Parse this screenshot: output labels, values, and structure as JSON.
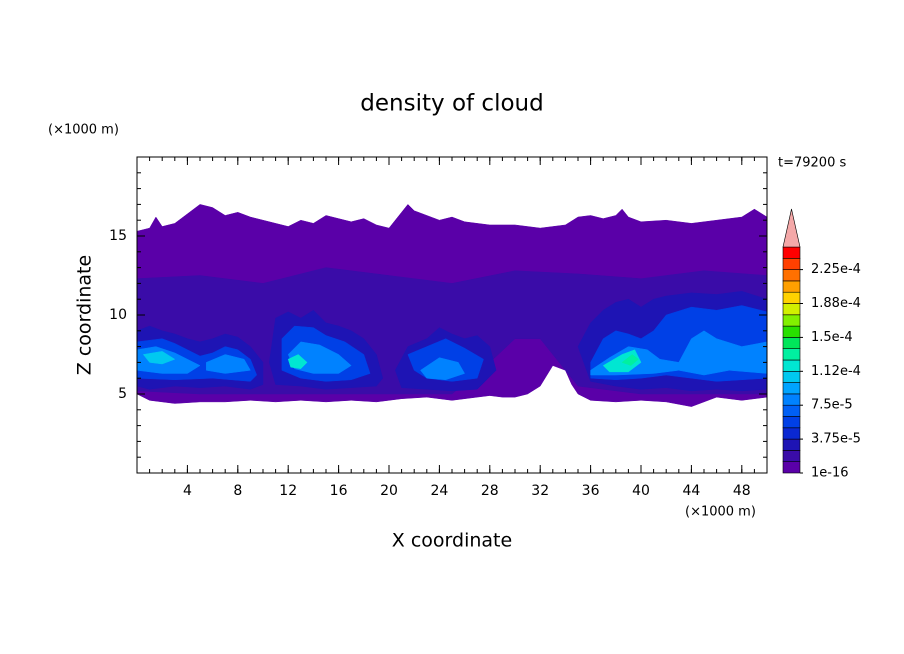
{
  "chart_data": {
    "type": "contour",
    "title": "density of cloud",
    "time_label": "t=79200 s",
    "x_label": "X coordinate",
    "y_label": "Z coordinate",
    "x_unit": "(×1000 m)",
    "y_unit": "(×1000 m)",
    "xlim": [
      0,
      50
    ],
    "ylim": [
      0,
      20
    ],
    "xticks": [
      4,
      8,
      12,
      16,
      20,
      24,
      28,
      32,
      36,
      40,
      44,
      48
    ],
    "yticks": [
      5,
      10,
      15
    ],
    "minor_step": 1,
    "levels": [
      1e-16,
      1.25e-05,
      2.5e-05,
      3.75e-05,
      5e-05,
      6.25e-05,
      7.5e-05,
      8.75e-05,
      0.0001,
      0.0001125,
      0.000125,
      0.0001375,
      0.00015,
      0.0001625,
      0.000175,
      0.0001875,
      0.0002,
      0.0002125,
      0.000225,
      0.0002375,
      0.00025
    ],
    "colors": [
      "#5a00a8",
      "#3a0ca8",
      "#1e14b4",
      "#0a28d2",
      "#0040e6",
      "#0060f5",
      "#0082ff",
      "#00a4ff",
      "#00c8f0",
      "#00e6d2",
      "#00f0a0",
      "#00e65a",
      "#28e000",
      "#82f000",
      "#d2f000",
      "#ffd200",
      "#ffa000",
      "#ff7000",
      "#ff4000",
      "#ff0000"
    ],
    "extend_color": "#f4a8a8",
    "colorbar_ticks": [
      1e-16,
      {
        "value": 3.75e-05,
        "label": "3.75e-5"
      },
      {
        "value": 7.5e-05,
        "label": "7.5e-5"
      },
      {
        "value": 0.0001125,
        "label": "1.12e-4"
      },
      {
        "value": 0.00015,
        "label": "1.5e-4"
      },
      {
        "value": 0.0001875,
        "label": "1.88e-4"
      },
      {
        "value": 0.000225,
        "label": "2.25e-4"
      }
    ],
    "regions": [
      {
        "level": 1e-16,
        "x": [
          0,
          1,
          1.5,
          2,
          3,
          4,
          5,
          6,
          7,
          8,
          9,
          10,
          11,
          12,
          13,
          14,
          15,
          16,
          17,
          18,
          19,
          20,
          21,
          21.5,
          22,
          23,
          24,
          25,
          26,
          28,
          30,
          31,
          32,
          33,
          34,
          35,
          36,
          37,
          38,
          38.5,
          39,
          40,
          42,
          44,
          46,
          48,
          49,
          50,
          50,
          48,
          46,
          44,
          42,
          40,
          38,
          36,
          35,
          34.5,
          34,
          33,
          32,
          31,
          30,
          29,
          28,
          27,
          25,
          23,
          21,
          19,
          17,
          15,
          13,
          11,
          9,
          7,
          5,
          3,
          1,
          0
        ],
        "z": [
          15.3,
          15.5,
          16.2,
          15.6,
          15.8,
          16.4,
          17,
          16.8,
          16.3,
          16.5,
          16.2,
          16,
          15.8,
          15.6,
          16,
          15.8,
          16.3,
          16.1,
          15.9,
          16.1,
          15.7,
          15.5,
          16.5,
          17,
          16.6,
          16.3,
          16,
          16.2,
          15.9,
          15.7,
          15.7,
          15.6,
          15.5,
          15.6,
          15.7,
          16.2,
          16.3,
          16.1,
          16.3,
          16.7,
          16.2,
          15.9,
          16,
          15.8,
          16,
          16.2,
          16.7,
          16.2,
          4.8,
          4.6,
          4.8,
          4.2,
          4.5,
          4.6,
          4.5,
          4.6,
          5,
          5.6,
          6.5,
          6.8,
          5.5,
          5,
          4.8,
          4.8,
          4.9,
          4.8,
          4.6,
          4.8,
          4.7,
          4.5,
          4.6,
          4.5,
          4.6,
          4.5,
          4.6,
          4.5,
          4.5,
          4.4,
          4.6,
          5
        ]
      },
      {
        "level": 1.25e-05,
        "x": [
          0,
          5,
          10,
          15,
          20,
          25,
          30,
          35,
          40,
          45,
          50,
          50,
          45,
          40,
          35,
          32,
          30,
          28,
          25,
          20,
          15,
          10,
          5,
          0
        ],
        "z": [
          12.3,
          12.5,
          12,
          13,
          12.5,
          12,
          12.8,
          12.6,
          12.3,
          12.8,
          12.5,
          5,
          5,
          5,
          5.5,
          8.5,
          8.5,
          7,
          5,
          5,
          5,
          5,
          5,
          5.2
        ]
      },
      {
        "level": 2.5e-05,
        "x": [
          0,
          1,
          2,
          3,
          4,
          5,
          6,
          7,
          8,
          9,
          10,
          10,
          9,
          7,
          5,
          3,
          1,
          0
        ],
        "z": [
          9,
          9.3,
          9,
          8.8,
          8.5,
          8.3,
          8.5,
          8.8,
          8.6,
          8,
          7,
          5.6,
          5.3,
          5.5,
          5.4,
          5.5,
          5.3,
          5.5
        ]
      },
      {
        "level": 5e-05,
        "x": [
          0,
          2,
          3,
          4,
          5,
          6,
          7,
          8,
          9,
          9.5,
          9,
          6,
          3,
          0
        ],
        "z": [
          8.3,
          8.5,
          8.2,
          7.8,
          7.4,
          7.6,
          8,
          7.8,
          7.2,
          6.2,
          5.8,
          6,
          5.9,
          6
        ]
      },
      {
        "level": 7.5e-05,
        "x": [
          0,
          1.5,
          3,
          4,
          5,
          4,
          2,
          0
        ],
        "z": [
          7.8,
          8,
          7.6,
          7.2,
          6.8,
          6.3,
          6.3,
          6.5
        ]
      },
      {
        "level": 7.5e-05,
        "x": [
          5.5,
          7,
          8.5,
          9,
          7,
          5.5
        ],
        "z": [
          7,
          7.5,
          7.2,
          6.5,
          6.3,
          6.5
        ]
      },
      {
        "level": 0.0001,
        "x": [
          0.5,
          2,
          3,
          2,
          1
        ],
        "z": [
          7.5,
          7.7,
          7.2,
          6.9,
          7
        ]
      },
      {
        "level": 2.5e-05,
        "x": [
          10.5,
          11,
          12,
          13,
          14,
          15,
          16,
          17,
          18,
          19,
          19.5,
          19,
          17,
          15,
          13,
          11
        ],
        "z": [
          7,
          9.8,
          10.2,
          9.8,
          10.3,
          9.5,
          9.3,
          9,
          8.5,
          7.5,
          6,
          5.5,
          5.4,
          5.3,
          5.5,
          5.6
        ]
      },
      {
        "level": 5e-05,
        "x": [
          11.5,
          12.5,
          14,
          15,
          16.5,
          18,
          18.5,
          17,
          15,
          13,
          11.5
        ],
        "z": [
          8.5,
          9.3,
          9.2,
          8.7,
          8.3,
          7.5,
          6.3,
          5.9,
          5.8,
          6,
          6.5
        ]
      },
      {
        "level": 7.5e-05,
        "x": [
          12,
          13,
          14.5,
          16,
          17,
          16,
          14,
          12.5
        ],
        "z": [
          7.5,
          8.3,
          8.1,
          7.5,
          6.8,
          6.3,
          6.3,
          6.6
        ]
      },
      {
        "level": 0.0001125,
        "x": [
          12,
          12.8,
          13.5,
          13,
          12.2
        ],
        "z": [
          7.2,
          7.5,
          7,
          6.6,
          6.7
        ]
      },
      {
        "level": 2.5e-05,
        "x": [
          20.5,
          21.5,
          23,
          24,
          25,
          26,
          27,
          28,
          28.5,
          27,
          25,
          23,
          21
        ],
        "z": [
          6.5,
          8,
          8.5,
          9.2,
          8.8,
          8.5,
          8.7,
          8,
          6.5,
          5.3,
          5.2,
          5.3,
          5.4
        ]
      },
      {
        "level": 5e-05,
        "x": [
          21.5,
          23,
          24.5,
          26,
          27.5,
          27,
          25,
          23,
          22
        ],
        "z": [
          7.5,
          8,
          8.5,
          7.9,
          7.2,
          6,
          5.8,
          6,
          6.5
        ]
      },
      {
        "level": 7.5e-05,
        "x": [
          22.5,
          24,
          25.5,
          26,
          24.5,
          23
        ],
        "z": [
          6.5,
          7.3,
          7,
          6.3,
          5.9,
          6
        ]
      },
      {
        "level": 2.5e-05,
        "x": [
          35,
          36,
          37,
          38,
          39,
          40,
          41,
          42,
          44,
          46,
          48,
          50,
          50,
          48,
          46,
          44,
          42,
          40,
          38,
          36
        ],
        "z": [
          8,
          9.5,
          10.3,
          10.8,
          11,
          10.5,
          11,
          11.2,
          11.4,
          11.3,
          11.5,
          11,
          5.3,
          5.2,
          5.3,
          5.2,
          5.4,
          5.3,
          5.5,
          5.8
        ]
      },
      {
        "level": 5e-05,
        "x": [
          36,
          37,
          38,
          39,
          40,
          41,
          42,
          44,
          46,
          48,
          50,
          50,
          46,
          44,
          42,
          40,
          38,
          36
        ],
        "z": [
          7,
          8.5,
          9,
          8.8,
          8.5,
          9,
          10,
          10.5,
          10.3,
          10.6,
          10.2,
          6,
          5.8,
          6,
          6.2,
          6,
          5.9,
          6
        ]
      },
      {
        "level": 7.5e-05,
        "x": [
          36,
          37.5,
          39,
          40.5,
          41.5,
          43,
          44,
          45,
          46,
          48,
          50,
          50,
          47,
          45,
          43,
          41,
          38,
          36
        ],
        "z": [
          6.5,
          7.3,
          8,
          7.8,
          7.2,
          7,
          8.5,
          9,
          8.5,
          8,
          8.3,
          6.3,
          6.5,
          6.2,
          6.5,
          6.3,
          6.2,
          6.2
        ]
      },
      {
        "level": 0.0001125,
        "x": [
          37,
          38.5,
          39.5,
          40,
          39,
          37.5
        ],
        "z": [
          6.8,
          7.5,
          7.8,
          7,
          6.4,
          6.4
        ]
      },
      {
        "level": 0.000125,
        "x": [
          38.5,
          39.3,
          39.8,
          39.2
        ],
        "z": [
          7,
          7.5,
          7.2,
          6.8
        ]
      }
    ]
  }
}
